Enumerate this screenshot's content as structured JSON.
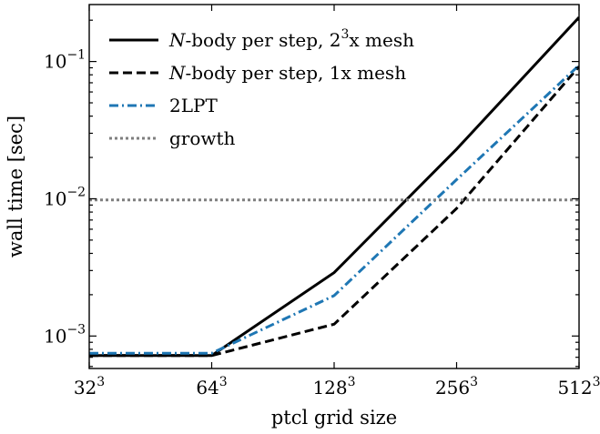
{
  "chart_data": {
    "type": "line",
    "xlabel": "ptcl grid size",
    "ylabel": "wall time [sec]",
    "x_scale": "log2",
    "y_scale": "log10",
    "xlim": [
      32,
      512
    ],
    "ylim": [
      0.00058,
      0.26
    ],
    "x_ticks": [
      {
        "value": 32,
        "base": "32",
        "exp": "3"
      },
      {
        "value": 64,
        "base": "64",
        "exp": "3"
      },
      {
        "value": 128,
        "base": "128",
        "exp": "3"
      },
      {
        "value": 256,
        "base": "256",
        "exp": "3"
      },
      {
        "value": 512,
        "base": "512",
        "exp": "3"
      }
    ],
    "y_ticks": [
      {
        "value": 0.001,
        "base": "10",
        "exp": "−3"
      },
      {
        "value": 0.01,
        "base": "10",
        "exp": "−2"
      },
      {
        "value": 0.1,
        "base": "10",
        "exp": "−1"
      }
    ],
    "x": [
      32,
      64,
      128,
      256,
      512
    ],
    "series": [
      {
        "name": "N-body per step, 2³x mesh",
        "legend_parts": [
          {
            "text": "N",
            "italic": true
          },
          {
            "text": "-body per step, 2"
          },
          {
            "text": "3",
            "sup": true
          },
          {
            "text": "x mesh"
          }
        ],
        "values": [
          0.00072,
          0.00072,
          0.0029,
          0.023,
          0.21
        ],
        "color": "#000000",
        "dash": "solid"
      },
      {
        "name": "N-body per step, 1x mesh",
        "legend_parts": [
          {
            "text": "N",
            "italic": true
          },
          {
            "text": "-body per step, 1x mesh"
          }
        ],
        "values": [
          0.00072,
          0.00072,
          0.00122,
          0.0085,
          0.092
        ],
        "color": "#000000",
        "dash": "dashed"
      },
      {
        "name": "2LPT",
        "legend_parts": [
          {
            "text": "2LPT"
          }
        ],
        "values": [
          0.00075,
          0.00075,
          0.00197,
          0.0138,
          0.094
        ],
        "color": "#1f77b4",
        "dash": "dashdot"
      },
      {
        "name": "growth",
        "legend_parts": [
          {
            "text": "growth"
          }
        ],
        "values": [
          0.0098,
          0.0098,
          0.0098,
          0.0098,
          0.0098
        ],
        "color": "#7f7f7f",
        "dash": "dotted"
      }
    ],
    "legend_position": "upper-left",
    "grid": false
  }
}
